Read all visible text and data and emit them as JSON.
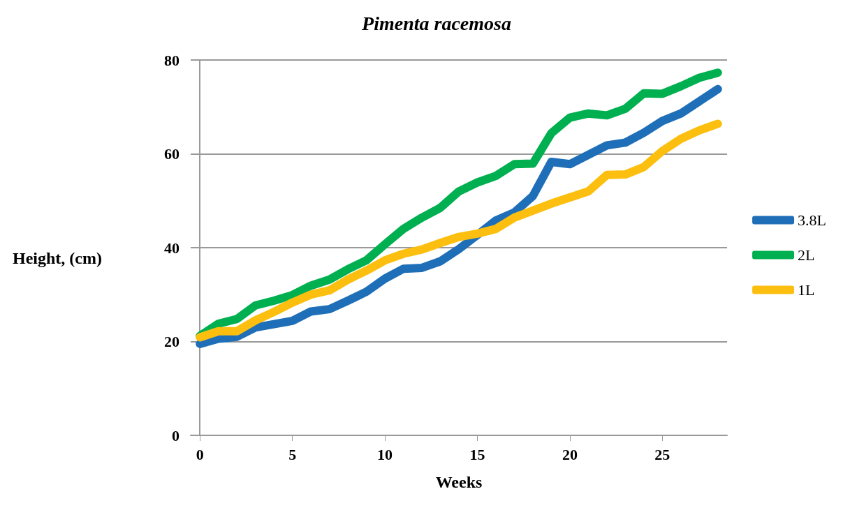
{
  "chart_data": {
    "type": "line",
    "title": "Pimenta racemosa",
    "xlabel": "Weeks",
    "ylabel": "Height, (cm)",
    "x": [
      0,
      1,
      2,
      3,
      4,
      5,
      6,
      7,
      8,
      9,
      10,
      11,
      12,
      13,
      14,
      15,
      16,
      17,
      18,
      19,
      20,
      21,
      22,
      23,
      24,
      25,
      26,
      27,
      28
    ],
    "series": [
      {
        "name": "3.8L",
        "color": "#1f6fb8",
        "values": [
          19.5,
          20.6,
          21,
          23,
          23.7,
          24.4,
          26.4,
          26.9,
          28.7,
          30.6,
          33.4,
          35.5,
          35.7,
          37.1,
          39.7,
          42.7,
          45.8,
          47.5,
          51,
          58.3,
          57.8,
          59.8,
          61.8,
          62.4,
          64.5,
          67,
          68.6,
          71.2,
          73.8
        ]
      },
      {
        "name": "2L",
        "color": "#00b050",
        "values": [
          21.2,
          23.8,
          24.8,
          27.7,
          28.7,
          29.9,
          31.9,
          33.2,
          35.4,
          37.3,
          40.7,
          44,
          46.4,
          48.5,
          52,
          53.9,
          55.3,
          57.8,
          57.9,
          64.4,
          67.7,
          68.6,
          68.2,
          69.6,
          72.9,
          72.8,
          74.4,
          76.2,
          77.3
        ]
      },
      {
        "name": "1L",
        "color": "#fcbf10",
        "values": [
          20.9,
          22.2,
          22.2,
          24.5,
          26.3,
          28.3,
          30,
          30.9,
          33.2,
          35.1,
          37.3,
          38.7,
          39.6,
          41,
          42.3,
          43,
          44,
          46.4,
          47.9,
          49.4,
          50.7,
          52,
          55.5,
          55.6,
          57.2,
          60.6,
          63.2,
          65,
          66.4
        ]
      }
    ],
    "xlim": [
      -0.5,
      28.5
    ],
    "xticks": [
      0,
      5,
      10,
      15,
      20,
      25
    ],
    "ylim": [
      0,
      80
    ],
    "yticks": [
      0,
      20,
      40,
      60,
      80
    ],
    "grid": "y",
    "legend": "right",
    "marker": "none",
    "line_style": "solid"
  }
}
